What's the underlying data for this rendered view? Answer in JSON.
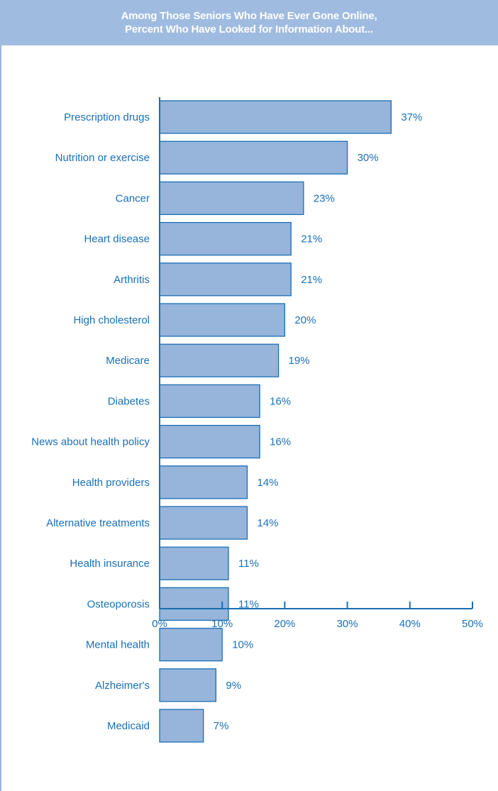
{
  "colors": {
    "bar_fill": "#97b4da",
    "bar_stroke": "#1a6fb5",
    "axis": "#1a6fb5",
    "text": "#1a70b8",
    "title_bg": "#9fbbe0",
    "title_text": "#ffffff"
  },
  "title": {
    "line1": "Among Those Seniors Who Have Ever Gone Online,",
    "line2": "Percent Who Have Looked for Information About..."
  },
  "chart_data": {
    "type": "bar",
    "orientation": "horizontal",
    "title": "Among Those Seniors Who Have Ever Gone Online, Percent Who Have Looked for Information About...",
    "categories": [
      "Prescription drugs",
      "Nutrition or exercise",
      "Cancer",
      "Heart disease",
      "Arthritis",
      "High cholesterol",
      "Medicare",
      "Diabetes",
      "News about health policy",
      "Health providers",
      "Alternative treatments",
      "Health insurance",
      "Osteoporosis",
      "Mental health",
      "Alzheimer's",
      "Medicaid"
    ],
    "values": [
      37,
      30,
      23,
      21,
      21,
      20,
      19,
      16,
      16,
      14,
      14,
      11,
      11,
      10,
      9,
      7
    ],
    "value_labels": [
      "37%",
      "30%",
      "23%",
      "21%",
      "21%",
      "20%",
      "19%",
      "16%",
      "16%",
      "14%",
      "14%",
      "11%",
      "11%",
      "10%",
      "9%",
      "7%"
    ],
    "xlim": [
      0,
      50
    ],
    "xticks": [
      0,
      10,
      20,
      30,
      40,
      50
    ],
    "xtick_labels": [
      "0%",
      "10%",
      "20%",
      "30%",
      "40%",
      "50%"
    ],
    "xlabel": "",
    "ylabel": "",
    "grid": false,
    "legend": "none"
  }
}
